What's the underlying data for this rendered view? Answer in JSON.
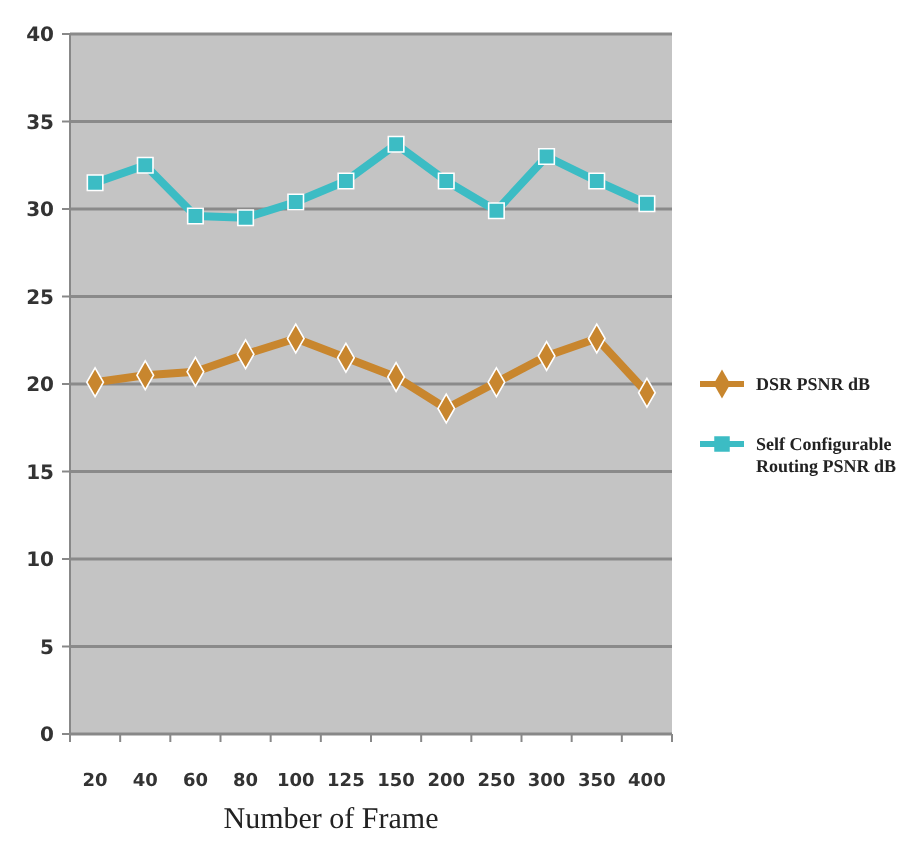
{
  "chart_data": {
    "type": "line",
    "xlabel": "Number of Frame",
    "categories": [
      "20",
      "40",
      "60",
      "80",
      "100",
      "125",
      "150",
      "200",
      "250",
      "300",
      "350",
      "400"
    ],
    "series": [
      {
        "name": "DSR PSNR dB",
        "color": "#c8862e",
        "marker": "diamond",
        "values": [
          20.1,
          20.5,
          20.7,
          21.7,
          22.6,
          21.5,
          20.4,
          18.6,
          20.1,
          21.6,
          22.6,
          19.5
        ]
      },
      {
        "name": "Self Configurable Routing PSNR dB",
        "color": "#3cbcc4",
        "marker": "square",
        "values": [
          31.5,
          32.5,
          29.6,
          29.5,
          30.4,
          31.6,
          33.7,
          31.6,
          29.9,
          33.0,
          31.6,
          30.3
        ]
      }
    ],
    "ylim": [
      0,
      40
    ],
    "yticks": [
      0,
      5,
      10,
      15,
      20,
      25,
      30,
      35,
      40
    ],
    "grid": "y",
    "legend": "right"
  }
}
